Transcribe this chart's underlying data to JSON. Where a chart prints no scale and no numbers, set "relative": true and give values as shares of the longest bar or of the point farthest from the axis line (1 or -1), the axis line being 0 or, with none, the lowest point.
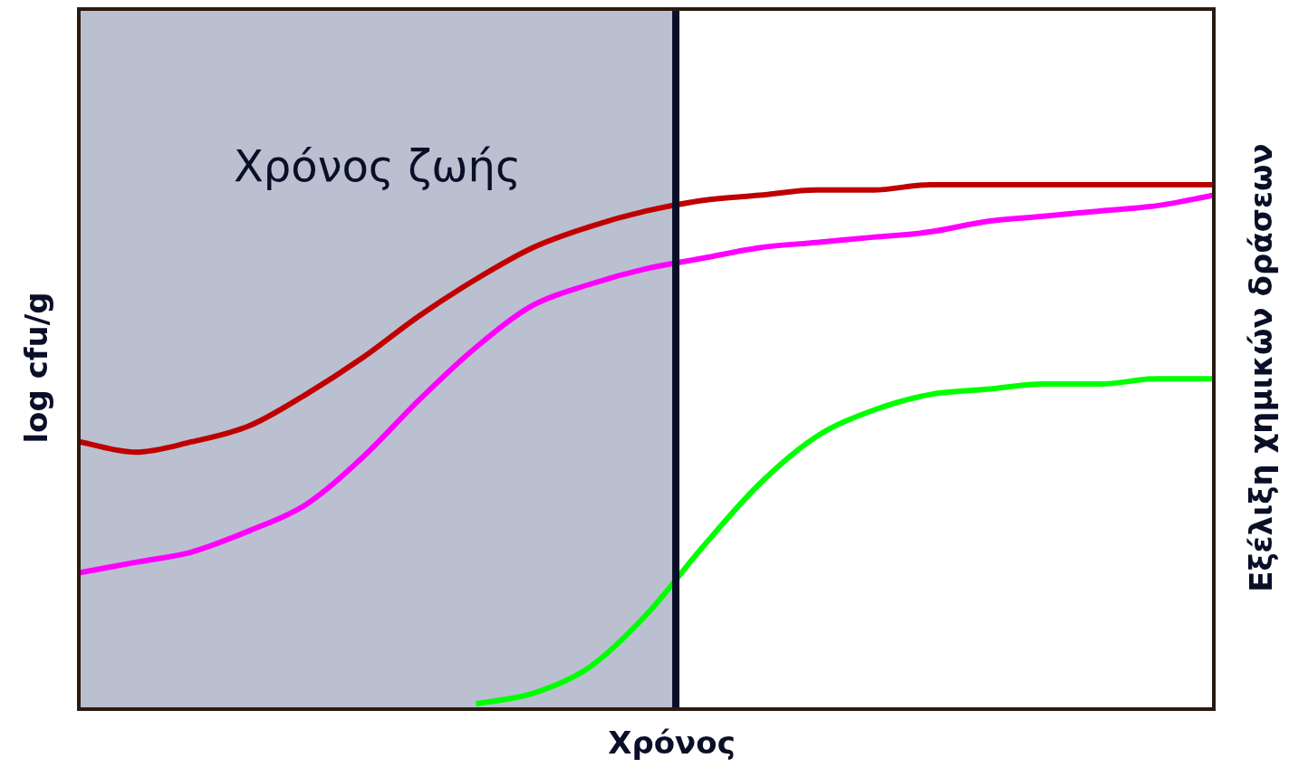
{
  "chart_data": {
    "type": "line",
    "relative": true,
    "xlabel": "Χρόνος",
    "ylabel": "log cfu/g",
    "y2label": "Εξέλιξη χημικών δράσεων",
    "legend": false,
    "grid": false,
    "marker": "none",
    "line_style": "solid",
    "categories": [
      null,
      null,
      null,
      null,
      null,
      null,
      null,
      null,
      null,
      null,
      null,
      null,
      null,
      null,
      null,
      null,
      null,
      null,
      null,
      null,
      null
    ],
    "series": [
      {
        "color": "#c00000",
        "values": [
          0.51,
          0.49,
          0.51,
          0.54,
          0.6,
          0.67,
          0.75,
          0.82,
          0.88,
          0.92,
          0.95,
          0.97,
          0.98,
          0.99,
          0.99,
          1,
          1,
          1,
          1,
          1,
          1
        ]
      },
      {
        "color": "#ff00ff",
        "values": [
          0.26,
          0.28,
          0.3,
          0.34,
          0.39,
          0.48,
          0.59,
          0.69,
          0.77,
          0.81,
          0.84,
          0.86,
          0.88,
          0.89,
          0.9,
          0.91,
          0.93,
          0.94,
          0.95,
          0.96,
          0.98
        ]
      },
      {
        "color": "#00ff00",
        "values": [
          null,
          null,
          null,
          null,
          null,
          null,
          null,
          0.01,
          0.03,
          0.08,
          0.18,
          0.31,
          0.43,
          0.52,
          0.57,
          0.6,
          0.61,
          0.62,
          0.62,
          0.63,
          0.63
        ]
      }
    ],
    "annotations": [
      "Χρόνος ζωής"
    ]
  }
}
